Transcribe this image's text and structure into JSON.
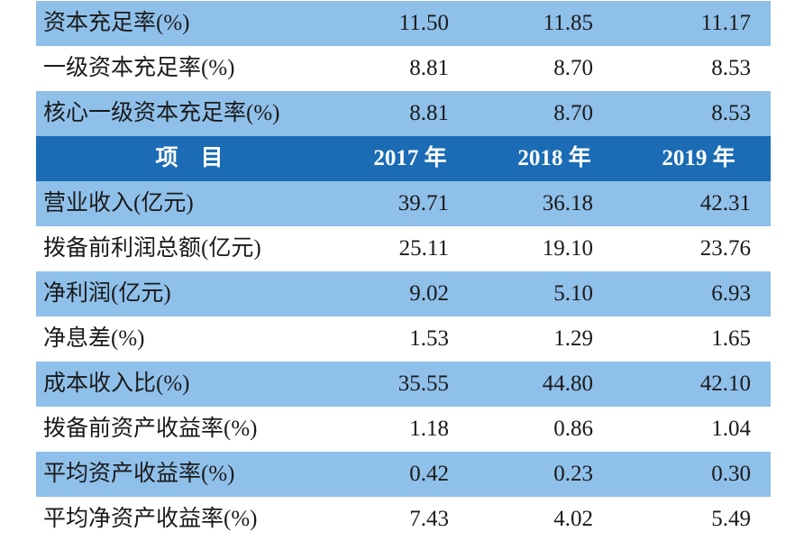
{
  "table": {
    "top_rows": [
      [
        "资本充足率(%)",
        "11.50",
        "11.85",
        "11.17"
      ],
      [
        "一级资本充足率(%)",
        "8.81",
        "8.70",
        "8.53"
      ],
      [
        "核心一级资本充足率(%)",
        "8.81",
        "8.70",
        "8.53"
      ]
    ],
    "header": [
      "项　目",
      "2017 年",
      "2018 年",
      "2019 年"
    ],
    "rows": [
      [
        "营业收入(亿元)",
        "39.71",
        "36.18",
        "42.31"
      ],
      [
        "拨备前利润总额(亿元)",
        "25.11",
        "19.10",
        "23.76"
      ],
      [
        "净利润(亿元)",
        "9.02",
        "5.10",
        "6.93"
      ],
      [
        "净息差(%)",
        "1.53",
        "1.29",
        "1.65"
      ],
      [
        "成本收入比(%)",
        "35.55",
        "44.80",
        "42.10"
      ],
      [
        "拨备前资产收益率(%)",
        "1.18",
        "0.86",
        "1.04"
      ],
      [
        "平均资产收益率(%)",
        "0.42",
        "0.23",
        "0.30"
      ],
      [
        "平均净资产收益率(%)",
        "7.43",
        "4.02",
        "5.49"
      ]
    ]
  }
}
